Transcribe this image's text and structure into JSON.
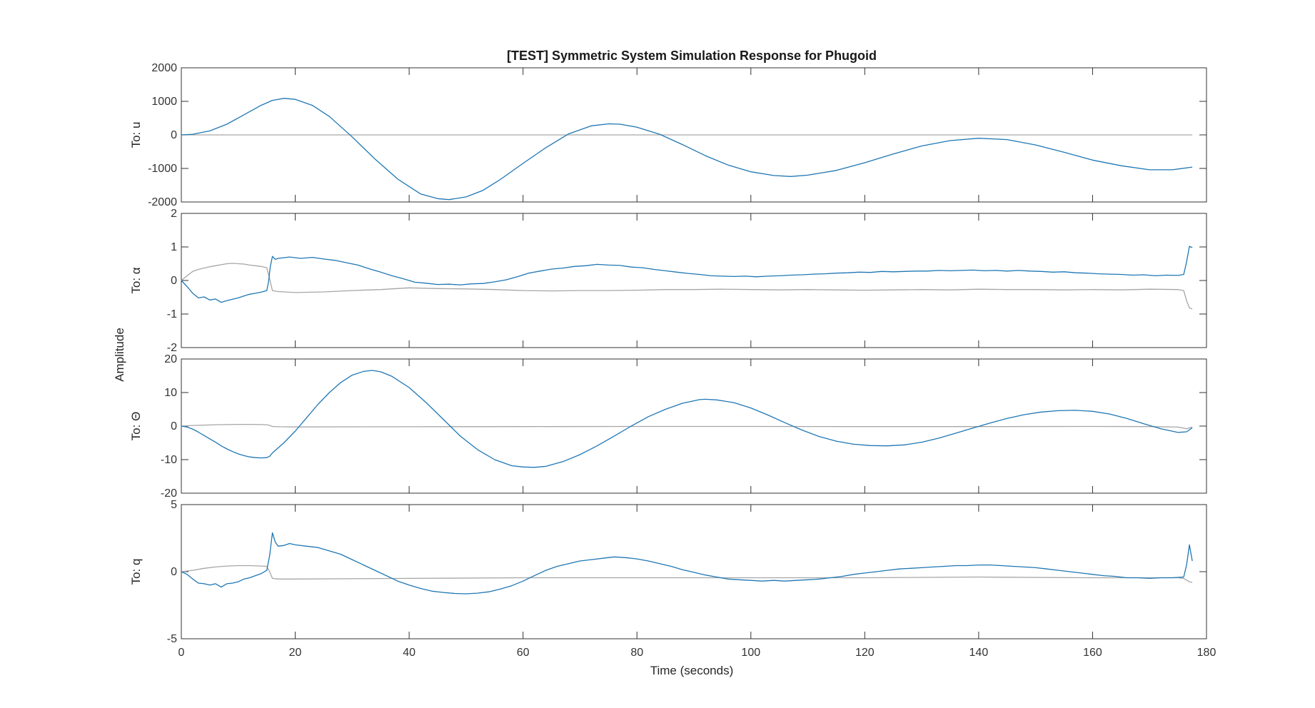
{
  "chart_data": {
    "type": "line",
    "title": "[TEST] Symmetric System Simulation Response for Phugoid",
    "xlabel": "Time (seconds)",
    "ylabel": "Amplitude",
    "xlim": [
      0,
      180
    ],
    "xticks": [
      0,
      20,
      40,
      60,
      80,
      100,
      120,
      140,
      160,
      180
    ],
    "grid": false,
    "colors": {
      "response": "#1f77b4",
      "input": "#a6a6a6",
      "axes": "#333333",
      "tick": "#262626"
    },
    "panels": [
      {
        "ylabel": "To: u",
        "ylim": [
          -2000,
          2000
        ],
        "yticks": [
          -2000,
          -1000,
          0,
          1000,
          2000
        ],
        "series": [
          {
            "color": "#1f77b4",
            "x": [
              0,
              2,
              5,
              8,
              11,
              14,
              16,
              18,
              20,
              23,
              26,
              30,
              34,
              38,
              42,
              45,
              47,
              50,
              53,
              56,
              60,
              64,
              68,
              72,
              75,
              77,
              80,
              84,
              88,
              92,
              96,
              100,
              104,
              107,
              110,
              115,
              120,
              125,
              130,
              135,
              140,
              145,
              150,
              155,
              160,
              165,
              170,
              174,
              177.5
            ],
            "y": [
              0,
              20,
              120,
              320,
              600,
              880,
              1030,
              1090,
              1060,
              880,
              550,
              -60,
              -720,
              -1320,
              -1760,
              -1900,
              -1930,
              -1850,
              -1650,
              -1330,
              -850,
              -380,
              30,
              270,
              330,
              320,
              230,
              20,
              -290,
              -620,
              -900,
              -1100,
              -1210,
              -1240,
              -1200,
              -1060,
              -830,
              -570,
              -330,
              -170,
              -100,
              -140,
              -300,
              -520,
              -750,
              -920,
              -1040,
              -1040,
              -960
            ]
          },
          {
            "color": "#a6a6a6",
            "x": [
              0,
              177.5
            ],
            "y": [
              0,
              0
            ]
          }
        ]
      },
      {
        "ylabel": "To: α",
        "ylim": [
          -2,
          2
        ],
        "yticks": [
          -2,
          -1,
          0,
          1,
          2
        ],
        "series": [
          {
            "color": "#1f77b4",
            "x": [
              0,
              1,
              2,
              3,
              4,
              5,
              6,
              7,
              8,
              9,
              10,
              11,
              12,
              13,
              14,
              15,
              15.3,
              15.6,
              16,
              16.5,
              17,
              19,
              21,
              23,
              25,
              27,
              29,
              31,
              33,
              35,
              37,
              39,
              41,
              43,
              45,
              47,
              49,
              51,
              53,
              55,
              57,
              59,
              61,
              63,
              65,
              67,
              69,
              71,
              73,
              75,
              77,
              79,
              81,
              83,
              85,
              87,
              89,
              91,
              93,
              95,
              97,
              99,
              101,
              103,
              105,
              107,
              109,
              111,
              113,
              115,
              117,
              119,
              121,
              123,
              125,
              127,
              129,
              131,
              133,
              135,
              137,
              139,
              141,
              143,
              145,
              147,
              149,
              151,
              153,
              155,
              157,
              159,
              161,
              163,
              165,
              167,
              169,
              171,
              173,
              175,
              176,
              176.5,
              177,
              177.5
            ],
            "y": [
              0,
              -0.18,
              -0.38,
              -0.52,
              -0.49,
              -0.58,
              -0.55,
              -0.65,
              -0.6,
              -0.56,
              -0.52,
              -0.46,
              -0.41,
              -0.38,
              -0.35,
              -0.3,
              -0.05,
              0.4,
              0.72,
              0.63,
              0.66,
              0.7,
              0.66,
              0.69,
              0.64,
              0.6,
              0.53,
              0.46,
              0.35,
              0.25,
              0.14,
              0.05,
              -0.05,
              -0.08,
              -0.12,
              -0.11,
              -0.13,
              -0.1,
              -0.09,
              -0.04,
              0.02,
              0.11,
              0.22,
              0.28,
              0.34,
              0.37,
              0.42,
              0.44,
              0.48,
              0.46,
              0.45,
              0.4,
              0.38,
              0.33,
              0.29,
              0.25,
              0.21,
              0.18,
              0.14,
              0.13,
              0.12,
              0.13,
              0.11,
              0.13,
              0.14,
              0.16,
              0.17,
              0.19,
              0.2,
              0.22,
              0.23,
              0.25,
              0.24,
              0.27,
              0.26,
              0.27,
              0.28,
              0.28,
              0.3,
              0.29,
              0.3,
              0.31,
              0.29,
              0.3,
              0.28,
              0.3,
              0.28,
              0.27,
              0.25,
              0.26,
              0.23,
              0.22,
              0.2,
              0.19,
              0.18,
              0.16,
              0.17,
              0.14,
              0.16,
              0.15,
              0.18,
              0.55,
              1.02,
              0.98
            ]
          },
          {
            "color": "#a6a6a6",
            "x": [
              0,
              1,
              2,
              3,
              4,
              5,
              6,
              7,
              8,
              9,
              10,
              11,
              12,
              13,
              14,
              15,
              15.5,
              16,
              17,
              20,
              25,
              30,
              35,
              40,
              45,
              50,
              55,
              60,
              65,
              70,
              75,
              80,
              85,
              90,
              95,
              100,
              105,
              110,
              115,
              120,
              125,
              130,
              135,
              140,
              145,
              150,
              155,
              160,
              165,
              170,
              175,
              176,
              176.5,
              177,
              177.5
            ],
            "y": [
              0,
              0.14,
              0.27,
              0.33,
              0.37,
              0.41,
              0.44,
              0.47,
              0.5,
              0.51,
              0.5,
              0.49,
              0.46,
              0.44,
              0.42,
              0.38,
              0.05,
              -0.3,
              -0.33,
              -0.36,
              -0.34,
              -0.3,
              -0.27,
              -0.22,
              -0.24,
              -0.25,
              -0.27,
              -0.3,
              -0.31,
              -0.3,
              -0.3,
              -0.29,
              -0.27,
              -0.27,
              -0.26,
              -0.27,
              -0.28,
              -0.27,
              -0.28,
              -0.29,
              -0.28,
              -0.27,
              -0.28,
              -0.26,
              -0.27,
              -0.27,
              -0.28,
              -0.27,
              -0.28,
              -0.26,
              -0.27,
              -0.3,
              -0.6,
              -0.82,
              -0.85
            ]
          }
        ]
      },
      {
        "ylabel": "To: Θ",
        "ylim": [
          -20,
          20
        ],
        "yticks": [
          -20,
          -10,
          0,
          10,
          20
        ],
        "series": [
          {
            "color": "#1f77b4",
            "x": [
              0,
              1,
              2,
              3,
              4,
              5,
              6,
              7,
              8,
              9,
              10,
              11,
              12,
              13,
              14,
              15,
              15.5,
              16,
              18,
              20,
              22,
              24,
              26,
              28,
              30,
              32,
              33.5,
              35,
              37,
              40,
              43,
              46,
              49,
              52,
              55,
              58,
              60,
              62,
              64,
              67,
              70,
              73,
              76,
              79,
              82,
              85,
              88,
              91,
              92,
              94,
              97,
              100,
              103,
              106,
              109,
              112,
              115,
              118,
              121,
              124,
              127,
              130,
              133,
              136,
              139,
              142,
              145,
              148,
              151,
              154,
              157,
              160,
              163,
              166,
              169,
              172,
              175,
              176.5,
              177.5
            ],
            "y": [
              0,
              -0.3,
              -0.9,
              -1.8,
              -2.8,
              -3.8,
              -4.8,
              -5.9,
              -6.8,
              -7.6,
              -8.3,
              -8.8,
              -9.2,
              -9.4,
              -9.5,
              -9.4,
              -9.0,
              -8.0,
              -5.0,
              -1.5,
              2.5,
              6.5,
              10.0,
              13.0,
              15.2,
              16.3,
              16.6,
              16.2,
              14.8,
              11.5,
              7.0,
              2.0,
              -3.0,
              -7.0,
              -10.0,
              -11.8,
              -12.2,
              -12.3,
              -12.0,
              -10.6,
              -8.5,
              -5.9,
              -3.0,
              0.0,
              2.8,
              5.0,
              6.8,
              7.9,
              8.0,
              7.8,
              7.0,
              5.4,
              3.3,
              1.0,
              -1.2,
              -3.1,
              -4.5,
              -5.4,
              -5.8,
              -5.9,
              -5.6,
              -4.8,
              -3.6,
              -2.1,
              -0.6,
              0.9,
              2.3,
              3.4,
              4.2,
              4.6,
              4.7,
              4.4,
              3.6,
              2.3,
              0.7,
              -0.8,
              -1.9,
              -1.7,
              -0.5
            ]
          },
          {
            "color": "#a6a6a6",
            "x": [
              0,
              2,
              4,
              6,
              8,
              10,
              12,
              14,
              15,
              15.5,
              16,
              17,
              20,
              40,
              60,
              80,
              100,
              120,
              140,
              160,
              170,
              175,
              176.5,
              177.5
            ],
            "y": [
              0,
              0.2,
              0.3,
              0.4,
              0.45,
              0.5,
              0.5,
              0.45,
              0.4,
              0.2,
              -0.1,
              -0.2,
              -0.25,
              -0.2,
              -0.15,
              -0.1,
              -0.1,
              -0.15,
              -0.15,
              -0.1,
              -0.15,
              -0.3,
              -0.8,
              -0.3
            ]
          }
        ]
      },
      {
        "ylabel": "To: q",
        "ylim": [
          -5,
          5
        ],
        "yticks": [
          -5,
          0,
          5
        ],
        "series": [
          {
            "color": "#1f77b4",
            "x": [
              0,
              1,
              2,
              3,
              4,
              5,
              6,
              7,
              8,
              9,
              10,
              11,
              12,
              13,
              14,
              15,
              15.5,
              16,
              16.5,
              17,
              18,
              19,
              20,
              22,
              24,
              26,
              28,
              30,
              32,
              34,
              36,
              38,
              40,
              42,
              44,
              46,
              48,
              50,
              52,
              54,
              56,
              58,
              60,
              62,
              64,
              66,
              68,
              70,
              72,
              74,
              76,
              78,
              80,
              82,
              84,
              86,
              88,
              90,
              92,
              94,
              96,
              98,
              100,
              102,
              104,
              106,
              108,
              110,
              112,
              114,
              116,
              118,
              120,
              122,
              124,
              126,
              128,
              130,
              132,
              134,
              136,
              138,
              140,
              142,
              144,
              146,
              148,
              150,
              152,
              154,
              156,
              158,
              160,
              162,
              164,
              166,
              168,
              170,
              172,
              174,
              176,
              176.5,
              177,
              177.5
            ],
            "y": [
              0,
              -0.2,
              -0.55,
              -0.85,
              -0.9,
              -1.0,
              -0.9,
              -1.15,
              -0.9,
              -0.85,
              -0.75,
              -0.55,
              -0.45,
              -0.3,
              -0.15,
              0.1,
              1.2,
              2.9,
              2.2,
              1.9,
              1.95,
              2.1,
              2.0,
              1.9,
              1.8,
              1.55,
              1.3,
              0.9,
              0.5,
              0.1,
              -0.3,
              -0.7,
              -1.0,
              -1.25,
              -1.45,
              -1.55,
              -1.62,
              -1.65,
              -1.6,
              -1.5,
              -1.3,
              -1.05,
              -0.7,
              -0.3,
              0.1,
              0.4,
              0.6,
              0.8,
              0.9,
              1.0,
              1.1,
              1.05,
              0.95,
              0.8,
              0.6,
              0.4,
              0.15,
              -0.05,
              -0.25,
              -0.4,
              -0.55,
              -0.6,
              -0.65,
              -0.7,
              -0.65,
              -0.7,
              -0.65,
              -0.6,
              -0.55,
              -0.45,
              -0.35,
              -0.2,
              -0.1,
              0.0,
              0.1,
              0.2,
              0.25,
              0.3,
              0.35,
              0.4,
              0.45,
              0.45,
              0.5,
              0.5,
              0.45,
              0.4,
              0.35,
              0.3,
              0.2,
              0.1,
              0.0,
              -0.1,
              -0.2,
              -0.3,
              -0.35,
              -0.45,
              -0.45,
              -0.5,
              -0.45,
              -0.45,
              -0.4,
              0.5,
              2.0,
              0.8
            ]
          },
          {
            "color": "#a6a6a6",
            "x": [
              0,
              2,
              4,
              6,
              8,
              10,
              12,
              14,
              15,
              15.5,
              16,
              17,
              20,
              40,
              60,
              80,
              100,
              120,
              140,
              160,
              170,
              175,
              176,
              177,
              177.5
            ],
            "y": [
              0,
              0.1,
              0.25,
              0.35,
              0.42,
              0.45,
              0.45,
              0.42,
              0.4,
              0.0,
              -0.5,
              -0.55,
              -0.55,
              -0.5,
              -0.45,
              -0.45,
              -0.45,
              -0.45,
              -0.4,
              -0.45,
              -0.45,
              -0.45,
              -0.5,
              -0.75,
              -0.8
            ]
          }
        ]
      }
    ]
  }
}
